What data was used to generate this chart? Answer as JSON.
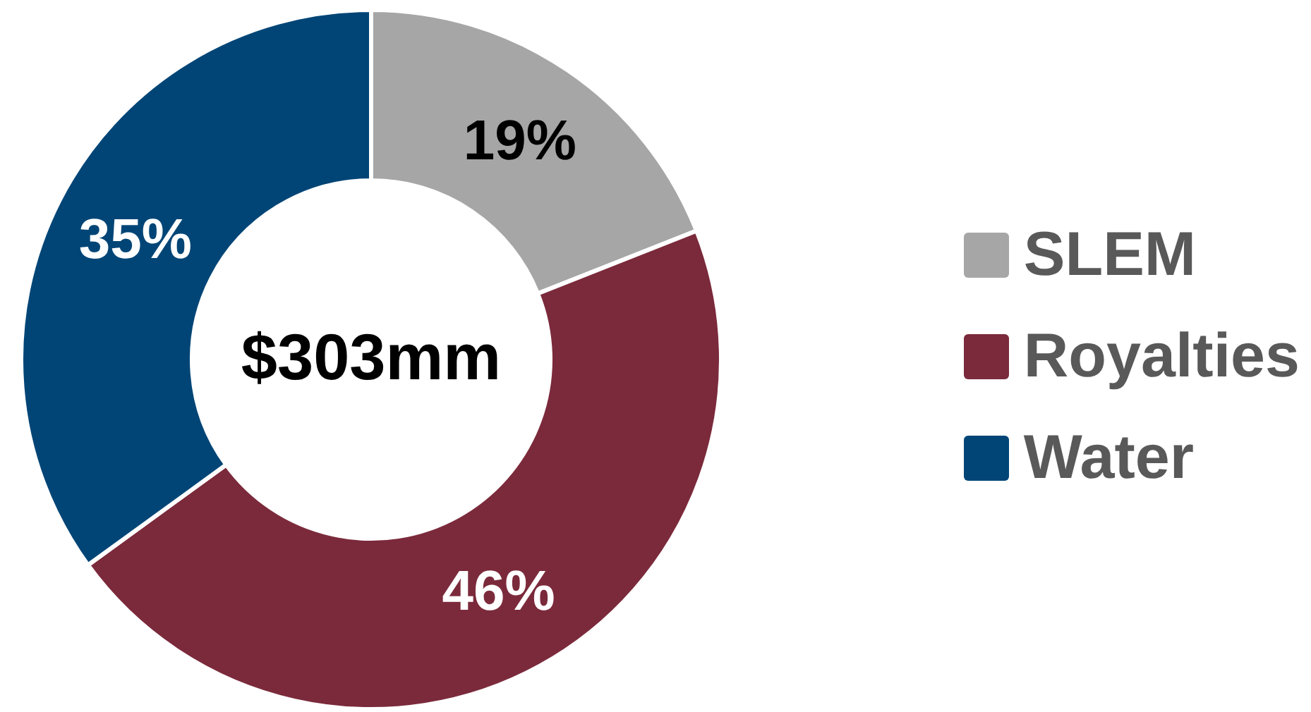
{
  "chart_data": {
    "type": "donut",
    "categories": [
      "SLEM",
      "Royalties",
      "Water"
    ],
    "values": [
      19,
      46,
      35
    ],
    "colors": [
      "#a6a6a6",
      "#7b2a3b",
      "#004576"
    ],
    "value_labels": [
      "19%",
      "46%",
      "35%"
    ],
    "annotations": [
      "$303mm"
    ],
    "legend": "right"
  }
}
